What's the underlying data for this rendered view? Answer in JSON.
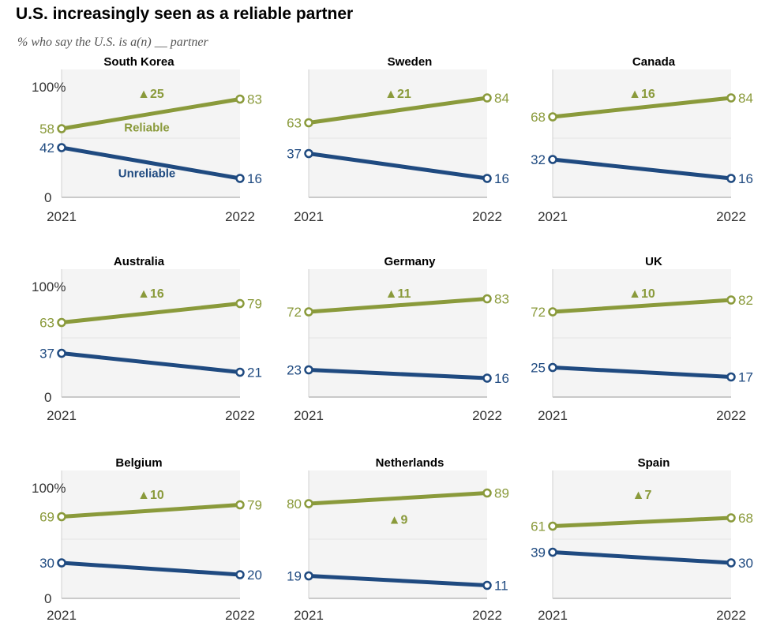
{
  "title": "U.S. increasingly seen as a reliable partner",
  "subtitle": "% who say the U.S. is a(n) __ partner",
  "colors": {
    "reliable": "#8a9a3b",
    "unreliable": "#1f4a80",
    "panel_bg": "#f4f4f4",
    "grid": "#e3e3e3"
  },
  "chart_data": [
    {
      "type": "line",
      "title": "South Korea",
      "x": [
        "2021",
        "2022"
      ],
      "ylim": [
        0,
        100
      ],
      "ytick_labels": [
        "100%",
        "0"
      ],
      "change": "25",
      "series": [
        {
          "name": "Reliable",
          "values": [
            58,
            83
          ]
        },
        {
          "name": "Unreliable",
          "values": [
            42,
            16
          ]
        }
      ]
    },
    {
      "type": "line",
      "title": "Sweden",
      "x": [
        "2021",
        "2022"
      ],
      "ylim": [
        0,
        100
      ],
      "change": "21",
      "series": [
        {
          "values": [
            63,
            84
          ]
        },
        {
          "values": [
            37,
            16
          ]
        }
      ]
    },
    {
      "type": "line",
      "title": "Canada",
      "x": [
        "2021",
        "2022"
      ],
      "ylim": [
        0,
        100
      ],
      "change": "16",
      "series": [
        {
          "values": [
            68,
            84
          ]
        },
        {
          "values": [
            32,
            16
          ]
        }
      ]
    },
    {
      "type": "line",
      "title": "Australia",
      "x": [
        "2021",
        "2022"
      ],
      "ylim": [
        0,
        100
      ],
      "ytick_labels": [
        "100%",
        "0"
      ],
      "change": "16",
      "series": [
        {
          "values": [
            63,
            79
          ]
        },
        {
          "values": [
            37,
            21
          ]
        }
      ]
    },
    {
      "type": "line",
      "title": "Germany",
      "x": [
        "2021",
        "2022"
      ],
      "ylim": [
        0,
        100
      ],
      "change": "11",
      "series": [
        {
          "values": [
            72,
            83
          ]
        },
        {
          "values": [
            23,
            16
          ]
        }
      ]
    },
    {
      "type": "line",
      "title": "UK",
      "x": [
        "2021",
        "2022"
      ],
      "ylim": [
        0,
        100
      ],
      "change": "10",
      "series": [
        {
          "values": [
            72,
            82
          ]
        },
        {
          "values": [
            25,
            17
          ]
        }
      ]
    },
    {
      "type": "line",
      "title": "Belgium",
      "x": [
        "2021",
        "2022"
      ],
      "ylim": [
        0,
        100
      ],
      "ytick_labels": [
        "100%",
        "0"
      ],
      "change": "10",
      "series": [
        {
          "values": [
            69,
            79
          ]
        },
        {
          "values": [
            30,
            20
          ]
        }
      ]
    },
    {
      "type": "line",
      "title": "Netherlands",
      "x": [
        "2021",
        "2022"
      ],
      "ylim": [
        0,
        100
      ],
      "change": "9",
      "series": [
        {
          "values": [
            80,
            89
          ]
        },
        {
          "values": [
            19,
            11
          ]
        }
      ]
    },
    {
      "type": "line",
      "title": "Spain",
      "x": [
        "2021",
        "2022"
      ],
      "ylim": [
        0,
        100
      ],
      "change": "7",
      "series": [
        {
          "values": [
            61,
            68
          ]
        },
        {
          "values": [
            39,
            30
          ]
        }
      ]
    }
  ]
}
